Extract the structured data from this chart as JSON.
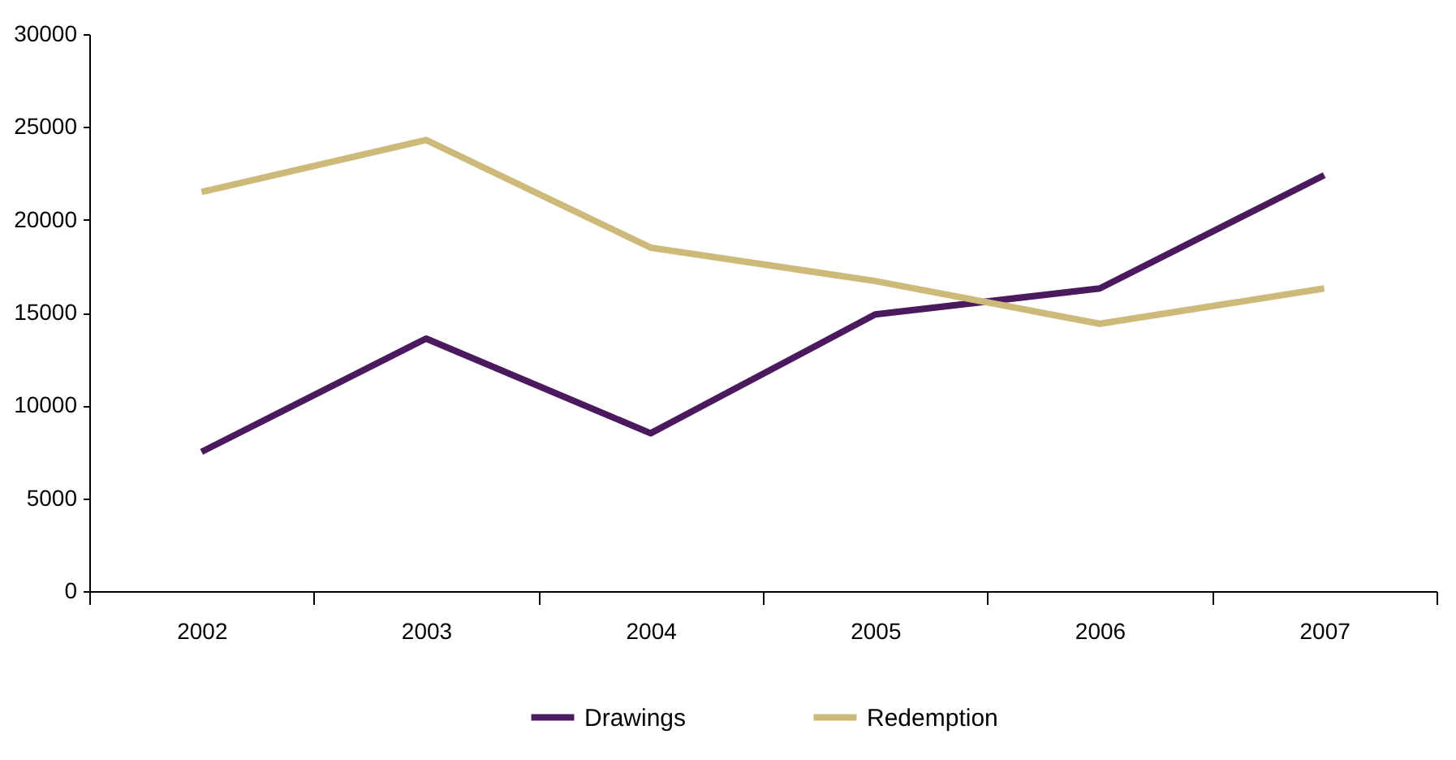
{
  "chart_data": {
    "type": "line",
    "categories": [
      "2002",
      "2003",
      "2004",
      "2005",
      "2006",
      "2007"
    ],
    "series": [
      {
        "name": "Drawings",
        "color": "#4b1a5e",
        "values": [
          7500,
          13600,
          8500,
          14900,
          16300,
          22400
        ]
      },
      {
        "name": "Redemption",
        "color": "#cdb97a",
        "values": [
          21500,
          24300,
          18500,
          16700,
          14400,
          16300
        ]
      }
    ],
    "ylim": [
      0,
      30000
    ],
    "yticks": [
      0,
      5000,
      10000,
      15000,
      20000,
      25000,
      30000
    ],
    "grid": false,
    "legend": "bottom",
    "marker": "none",
    "line_style": "solid"
  }
}
